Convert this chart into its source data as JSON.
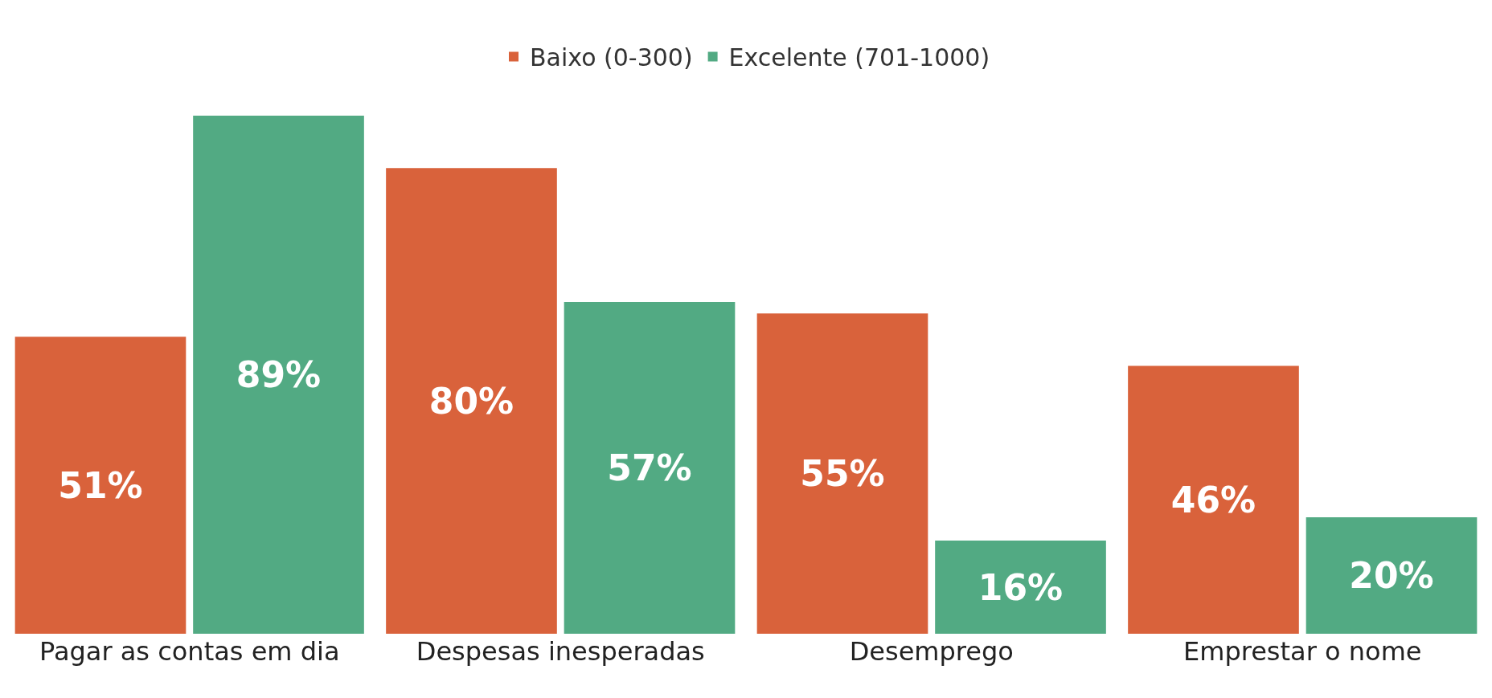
{
  "chart_data": {
    "type": "bar",
    "categories": [
      "Pagar as contas em dia",
      "Despesas inesperadas",
      "Desemprego",
      "Emprestar o nome"
    ],
    "series": [
      {
        "name": "Baixo (0-300)",
        "color": "#d9623b",
        "values": [
          51,
          80,
          55,
          46
        ],
        "value_labels": [
          "51%",
          "80%",
          "55%",
          "46%"
        ]
      },
      {
        "name": "Excelente (701-1000)",
        "color": "#52aa83",
        "values": [
          89,
          57,
          16,
          20
        ],
        "value_labels": [
          "89%",
          "57%",
          "16%",
          "20%"
        ]
      }
    ],
    "legend": "top",
    "tick_labels": "x"
  }
}
